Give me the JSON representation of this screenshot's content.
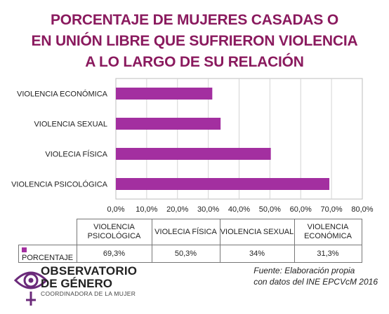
{
  "chart_data": {
    "type": "bar",
    "orientation": "horizontal",
    "title_lines": [
      "PORCENTAJE DE MUJERES CASADAS O",
      "EN UNIÓN LIBRE QUE SUFRIERON VIOLENCIA",
      "A LO LARGO DE SU RELACIÓN"
    ],
    "categories": [
      "VIOLENCIA ECONÓMICA",
      "VIOLENCIA SEXUAL",
      "VIOLECIA FÍSICA",
      "VIOLENCIA PSICOLÓGICA"
    ],
    "series": [
      {
        "name": "PORCENTAJE",
        "values": [
          31.3,
          34,
          50.3,
          69.3
        ],
        "color": "#a32fa0"
      }
    ],
    "xlim": [
      0,
      80
    ],
    "x_ticks": [
      "0,0%",
      "10,0%",
      "20,0%",
      "30,0%",
      "40,0%",
      "50,0%",
      "60,0%",
      "70,0%",
      "80,0%"
    ],
    "grid": true,
    "data_table": {
      "header_lines": [
        [
          "VIOLENCIA",
          "PSICOLÓGICA"
        ],
        [
          "VIOLECIA FÍSICA"
        ],
        [
          "VIOLENCIA SEXUAL"
        ],
        [
          "VIOLENCIA",
          "ECONÓMICA"
        ]
      ],
      "row_label": "PORCENTAJE",
      "values": [
        "69,3%",
        "50,3%",
        "34%",
        "31,3%"
      ]
    }
  },
  "logo": {
    "line1": "OBSERVATORIO",
    "line2": "DE GÉNERO",
    "line3": "COORDINADORA DE LA MUJER"
  },
  "source": {
    "line1": "Fuente: Elaboración propia",
    "line2": "con datos del INE EPCVcM 2016"
  }
}
